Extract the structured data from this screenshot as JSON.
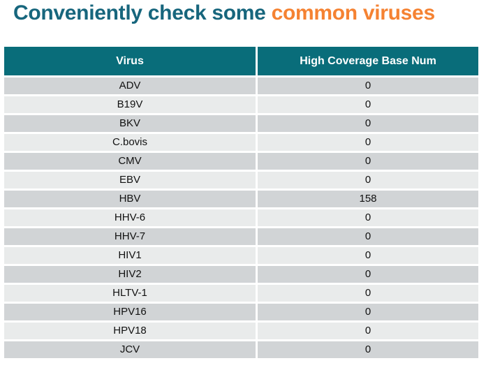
{
  "title": {
    "prefix": "Conveniently check some ",
    "highlight": "common viruses"
  },
  "colors": {
    "title_teal": "#17667d",
    "title_orange": "#f58232",
    "header_bg": "#096d7a",
    "header_text": "#ffffff",
    "row_dark": "#d1d4d6",
    "row_light": "#e9ebeb",
    "cell_text": "#111111"
  },
  "table": {
    "columns": [
      "Virus",
      "High Coverage Base Num"
    ],
    "rows": [
      {
        "virus": "ADV",
        "value": "0"
      },
      {
        "virus": "B19V",
        "value": "0"
      },
      {
        "virus": "BKV",
        "value": "0"
      },
      {
        "virus": "C.bovis",
        "value": "0"
      },
      {
        "virus": "CMV",
        "value": "0"
      },
      {
        "virus": "EBV",
        "value": "0"
      },
      {
        "virus": "HBV",
        "value": "158"
      },
      {
        "virus": "HHV-6",
        "value": "0"
      },
      {
        "virus": "HHV-7",
        "value": "0"
      },
      {
        "virus": "HIV1",
        "value": "0"
      },
      {
        "virus": "HIV2",
        "value": "0"
      },
      {
        "virus": "HLTV-1",
        "value": "0"
      },
      {
        "virus": "HPV16",
        "value": "0"
      },
      {
        "virus": "HPV18",
        "value": "0"
      },
      {
        "virus": "JCV",
        "value": "0"
      }
    ]
  },
  "chart_data": {
    "type": "table",
    "title": "Conveniently check some common viruses",
    "columns": [
      "Virus",
      "High Coverage Base Num"
    ],
    "categories": [
      "ADV",
      "B19V",
      "BKV",
      "C.bovis",
      "CMV",
      "EBV",
      "HBV",
      "HHV-6",
      "HHV-7",
      "HIV1",
      "HIV2",
      "HLTV-1",
      "HPV16",
      "HPV18",
      "JCV"
    ],
    "values": [
      0,
      0,
      0,
      0,
      0,
      0,
      158,
      0,
      0,
      0,
      0,
      0,
      0,
      0,
      0
    ]
  }
}
